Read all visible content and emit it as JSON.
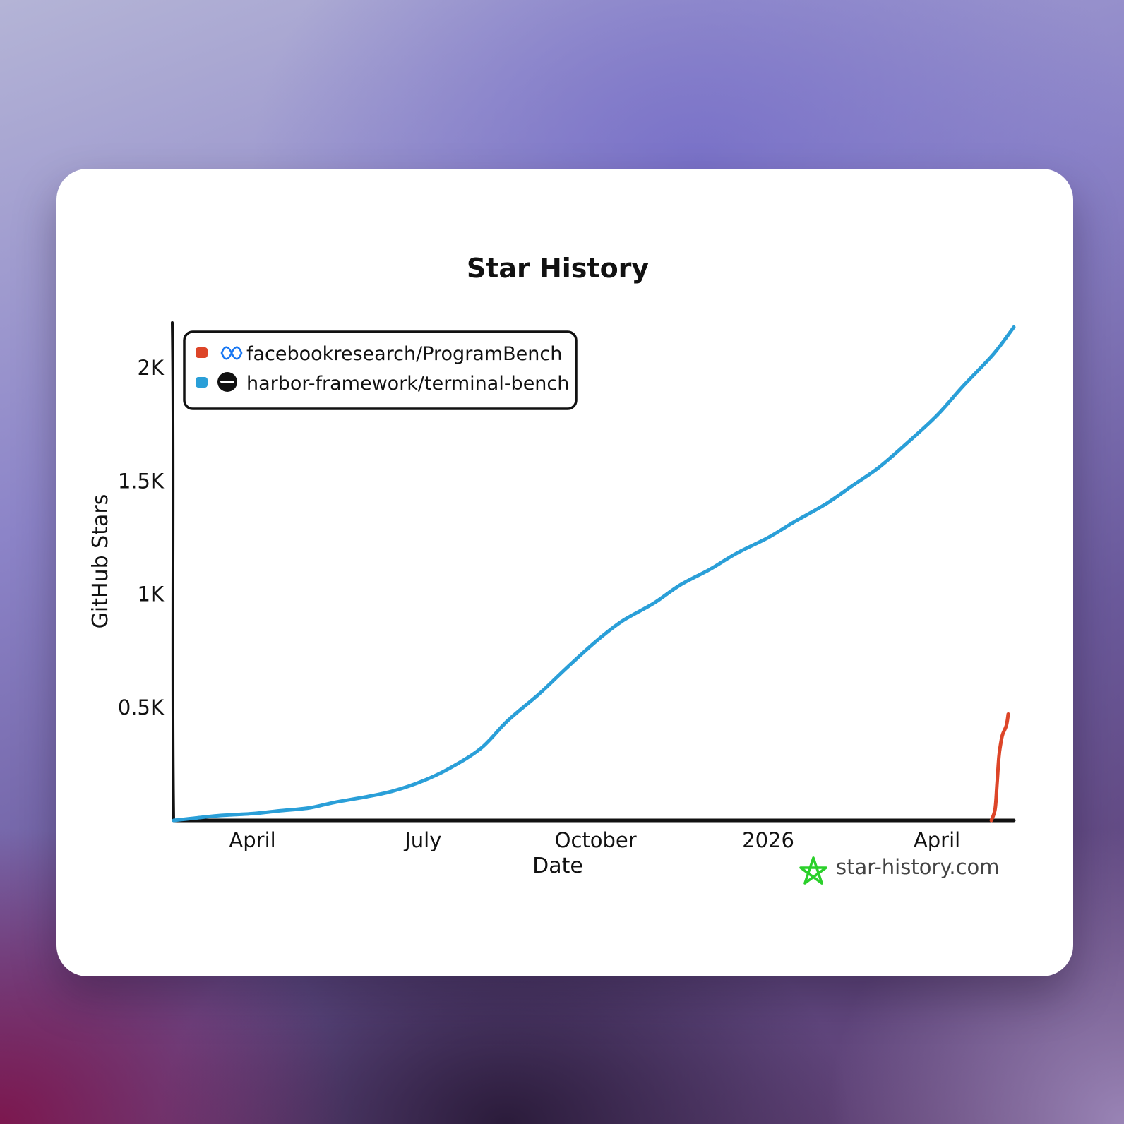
{
  "chart_data": {
    "type": "line",
    "title": "Star History",
    "xlabel": "Date",
    "ylabel": "GitHub Stars",
    "x_ticks": [
      {
        "label": "April",
        "date": "2025-04-01"
      },
      {
        "label": "July",
        "date": "2025-07-01"
      },
      {
        "label": "October",
        "date": "2025-10-01"
      },
      {
        "label": "2026",
        "date": "2026-01-01"
      },
      {
        "label": "April",
        "date": "2026-04-01"
      }
    ],
    "y_ticks": [
      {
        "label": "0.5K",
        "value": 500
      },
      {
        "label": "1K",
        "value": 1000
      },
      {
        "label": "1.5K",
        "value": 1500
      },
      {
        "label": "2K",
        "value": 2000
      }
    ],
    "xlim": [
      "2025-02-18",
      "2026-05-12"
    ],
    "ylim": [
      0,
      2200
    ],
    "legend_position": "top-left",
    "grid": false,
    "series": [
      {
        "name": "facebookresearch/ProgramBench",
        "color": "#dd4528",
        "icon": "meta-logo-icon",
        "points": [
          [
            "2026-04-30",
            0
          ],
          [
            "2026-05-02",
            50
          ],
          [
            "2026-05-03",
            160
          ],
          [
            "2026-05-04",
            280
          ],
          [
            "2026-05-05",
            340
          ],
          [
            "2026-05-06",
            380
          ],
          [
            "2026-05-08",
            420
          ],
          [
            "2026-05-09",
            470
          ]
        ]
      },
      {
        "name": "harbor-framework/terminal-bench",
        "color": "#2a9fd8",
        "icon": "harbor-logo-icon",
        "points": [
          [
            "2025-02-18",
            0
          ],
          [
            "2025-03-01",
            10
          ],
          [
            "2025-03-15",
            22
          ],
          [
            "2025-04-01",
            30
          ],
          [
            "2025-04-15",
            42
          ],
          [
            "2025-05-01",
            55
          ],
          [
            "2025-05-15",
            80
          ],
          [
            "2025-06-01",
            105
          ],
          [
            "2025-06-15",
            130
          ],
          [
            "2025-07-01",
            175
          ],
          [
            "2025-07-15",
            230
          ],
          [
            "2025-08-01",
            320
          ],
          [
            "2025-08-15",
            440
          ],
          [
            "2025-09-01",
            560
          ],
          [
            "2025-09-15",
            670
          ],
          [
            "2025-10-01",
            790
          ],
          [
            "2025-10-15",
            880
          ],
          [
            "2025-11-01",
            960
          ],
          [
            "2025-11-15",
            1040
          ],
          [
            "2025-12-01",
            1110
          ],
          [
            "2025-12-15",
            1180
          ],
          [
            "2026-01-01",
            1250
          ],
          [
            "2026-01-15",
            1320
          ],
          [
            "2026-02-01",
            1400
          ],
          [
            "2026-02-15",
            1480
          ],
          [
            "2026-03-01",
            1560
          ],
          [
            "2026-03-15",
            1660
          ],
          [
            "2026-04-01",
            1790
          ],
          [
            "2026-04-15",
            1920
          ],
          [
            "2026-05-01",
            2060
          ],
          [
            "2026-05-12",
            2180
          ]
        ]
      }
    ]
  },
  "watermark": {
    "text": "star-history.com",
    "icon": "star-history-logo-icon",
    "icon_color": "#2bd02b"
  },
  "legend": {
    "items": [
      {
        "label": "facebookresearch/ProgramBench"
      },
      {
        "label": "harbor-framework/terminal-bench"
      }
    ]
  }
}
